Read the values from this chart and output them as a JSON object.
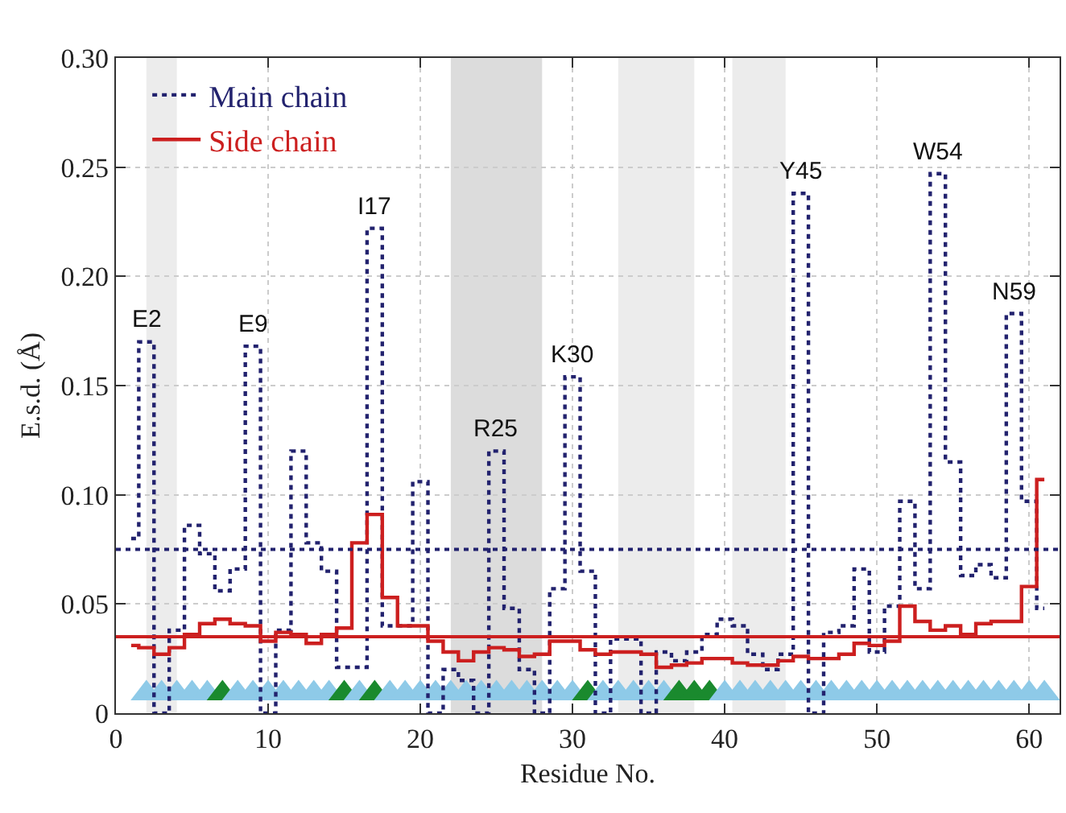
{
  "chart_data": {
    "type": "step",
    "xlabel": "Residue No.",
    "ylabel": "E.s.d. (Å)",
    "x": [
      1,
      2,
      3,
      4,
      5,
      6,
      7,
      8,
      9,
      10,
      11,
      12,
      13,
      14,
      15,
      16,
      17,
      18,
      19,
      20,
      21,
      22,
      23,
      24,
      25,
      26,
      27,
      28,
      29,
      30,
      31,
      32,
      33,
      34,
      35,
      36,
      37,
      38,
      39,
      40,
      41,
      42,
      43,
      44,
      45,
      46,
      47,
      48,
      49,
      50,
      51,
      52,
      53,
      54,
      55,
      56,
      57,
      58,
      59,
      60,
      61
    ],
    "series": [
      {
        "name": "Main chain",
        "color": "#22226e",
        "line_style": "dotted",
        "values": [
          0.08,
          0.17,
          0,
          0.038,
          0.086,
          0.073,
          0.056,
          0.066,
          0.168,
          0,
          0.038,
          0.12,
          0.078,
          0.065,
          0.021,
          0.021,
          0.222,
          0.04,
          0.04,
          0.106,
          0,
          0.02,
          0.015,
          0,
          0.12,
          0.048,
          0.02,
          0,
          0.057,
          0.154,
          0.065,
          0,
          0.034,
          0.034,
          0,
          0.028,
          0.024,
          0.028,
          0.036,
          0.043,
          0.04,
          0.027,
          0.02,
          0.027,
          0.238,
          0,
          0.037,
          0.04,
          0.066,
          0.028,
          0.049,
          0.097,
          0.057,
          0.247,
          0.115,
          0.063,
          0.068,
          0.062,
          0.183,
          0.097,
          0.048
        ]
      },
      {
        "name": "Side chain",
        "color": "#cc1f1f",
        "line_style": "solid",
        "values": [
          0.031,
          0.03,
          0.027,
          0.03,
          0.036,
          0.041,
          0.043,
          0.041,
          0.04,
          0.033,
          0.037,
          0.036,
          0.032,
          0.036,
          0.039,
          0.078,
          0.091,
          0.053,
          0.04,
          0.04,
          0.033,
          0.028,
          0.024,
          0.028,
          0.03,
          0.029,
          0.026,
          0.027,
          0.033,
          0.033,
          0.029,
          0.027,
          0.028,
          0.028,
          0.027,
          0.021,
          0.022,
          0.023,
          0.025,
          0.025,
          0.023,
          0.022,
          0.022,
          0.024,
          0.026,
          0.025,
          0.025,
          0.027,
          0.032,
          0.031,
          0.033,
          0.049,
          0.042,
          0.038,
          0.04,
          0.036,
          0.041,
          0.042,
          0.042,
          0.058,
          0.107
        ]
      },
      {
        "type": "scatter",
        "marker": "triangle",
        "x": [
          2,
          3,
          4,
          5,
          6,
          7,
          8,
          9,
          10,
          11,
          12,
          13,
          14,
          15,
          16,
          17,
          18,
          19,
          20,
          21,
          22,
          23,
          24,
          25,
          26,
          27,
          28,
          29,
          30,
          31,
          32,
          33,
          34,
          35,
          36,
          37,
          38,
          39,
          40,
          41,
          42,
          43,
          44,
          45,
          46,
          47,
          48,
          49,
          50,
          51,
          52,
          53,
          54,
          55,
          56,
          57,
          58,
          59,
          60,
          61
        ],
        "values": [
          0.009,
          0.009,
          0.009,
          0.009,
          0.009,
          0.009,
          0.009,
          0.009,
          0.009,
          0.009,
          0.009,
          0.009,
          0.009,
          0.009,
          0.009,
          0.009,
          0.009,
          0.009,
          0.009,
          0.009,
          0.009,
          0.009,
          0.009,
          0.009,
          0.009,
          0.009,
          0.009,
          0.009,
          0.009,
          0.009,
          0.009,
          0.009,
          0.009,
          0.009,
          0.009,
          0.009,
          0.009,
          0.009,
          0.009,
          0.009,
          0.009,
          0.009,
          0.009,
          0.009,
          0.009,
          0.009,
          0.009,
          0.009,
          0.009,
          0.009,
          0.009,
          0.009,
          0.009,
          0.009,
          0.009,
          0.009,
          0.009,
          0.009,
          0.009,
          0.009
        ],
        "colors": [
          "#8ecae8",
          "#8ecae8",
          "#8ecae8",
          "#8ecae8",
          "#8ecae8",
          "#1a8a2e",
          "#8ecae8",
          "#8ecae8",
          "#8ecae8",
          "#8ecae8",
          "#8ecae8",
          "#8ecae8",
          "#8ecae8",
          "#1a8a2e",
          "#8ecae8",
          "#1a8a2e",
          "#8ecae8",
          "#8ecae8",
          "#8ecae8",
          "#8ecae8",
          "#8ecae8",
          "#8ecae8",
          "#8ecae8",
          "#8ecae8",
          "#8ecae8",
          "#8ecae8",
          "#8ecae8",
          "#8ecae8",
          "#8ecae8",
          "#1a8a2e",
          "#8ecae8",
          "#8ecae8",
          "#8ecae8",
          "#8ecae8",
          "#8ecae8",
          "#1a8a2e",
          "#1a8a2e",
          "#1a8a2e",
          "#8ecae8",
          "#8ecae8",
          "#8ecae8",
          "#8ecae8",
          "#8ecae8",
          "#8ecae8",
          "#8ecae8",
          "#8ecae8",
          "#8ecae8",
          "#8ecae8",
          "#8ecae8",
          "#8ecae8",
          "#8ecae8",
          "#8ecae8",
          "#8ecae8",
          "#8ecae8",
          "#8ecae8",
          "#8ecae8",
          "#8ecae8",
          "#8ecae8",
          "#8ecae8",
          "#8ecae8"
        ]
      }
    ],
    "ref_lines": [
      {
        "axis": "y",
        "value": 0.075,
        "color": "#22226e",
        "line_style": "dotted"
      },
      {
        "axis": "y",
        "value": 0.035,
        "color": "#cc1f1f",
        "line_style": "solid"
      }
    ],
    "bands": [
      {
        "axis": "x",
        "from": 2,
        "to": 4,
        "color": "#ececec"
      },
      {
        "axis": "x",
        "from": 22,
        "to": 28,
        "color": "#dcdcdc"
      },
      {
        "axis": "x",
        "from": 33,
        "to": 38,
        "color": "#ececec"
      },
      {
        "axis": "x",
        "from": 40.5,
        "to": 44,
        "color": "#ececec"
      }
    ],
    "annotations": [
      {
        "text": "E2",
        "x": 2,
        "y": 0.17
      },
      {
        "text": "E9",
        "x": 9,
        "y": 0.168
      },
      {
        "text": "I17",
        "x": 17,
        "y": 0.222
      },
      {
        "text": "R25",
        "x": 25,
        "y": 0.12
      },
      {
        "text": "K30",
        "x": 30,
        "y": 0.154
      },
      {
        "text": "Y45",
        "x": 45,
        "y": 0.238
      },
      {
        "text": "W54",
        "x": 54,
        "y": 0.247
      },
      {
        "text": "N59",
        "x": 59,
        "y": 0.183
      }
    ],
    "xlim": [
      0,
      62
    ],
    "xticks": [
      0,
      10,
      20,
      30,
      40,
      50,
      60
    ],
    "ylim": [
      0,
      0.3
    ],
    "yticks": [
      0,
      {
        "value": 0.05,
        "label": "0.05"
      },
      {
        "value": 0.1,
        "label": "0.10"
      },
      {
        "value": 0.15,
        "label": "0.15"
      },
      {
        "value": 0.2,
        "label": "0.20"
      },
      {
        "value": 0.25,
        "label": "0.25"
      },
      {
        "value": 0.3,
        "label": "0.30"
      }
    ],
    "grid": true,
    "legend": "top left"
  }
}
